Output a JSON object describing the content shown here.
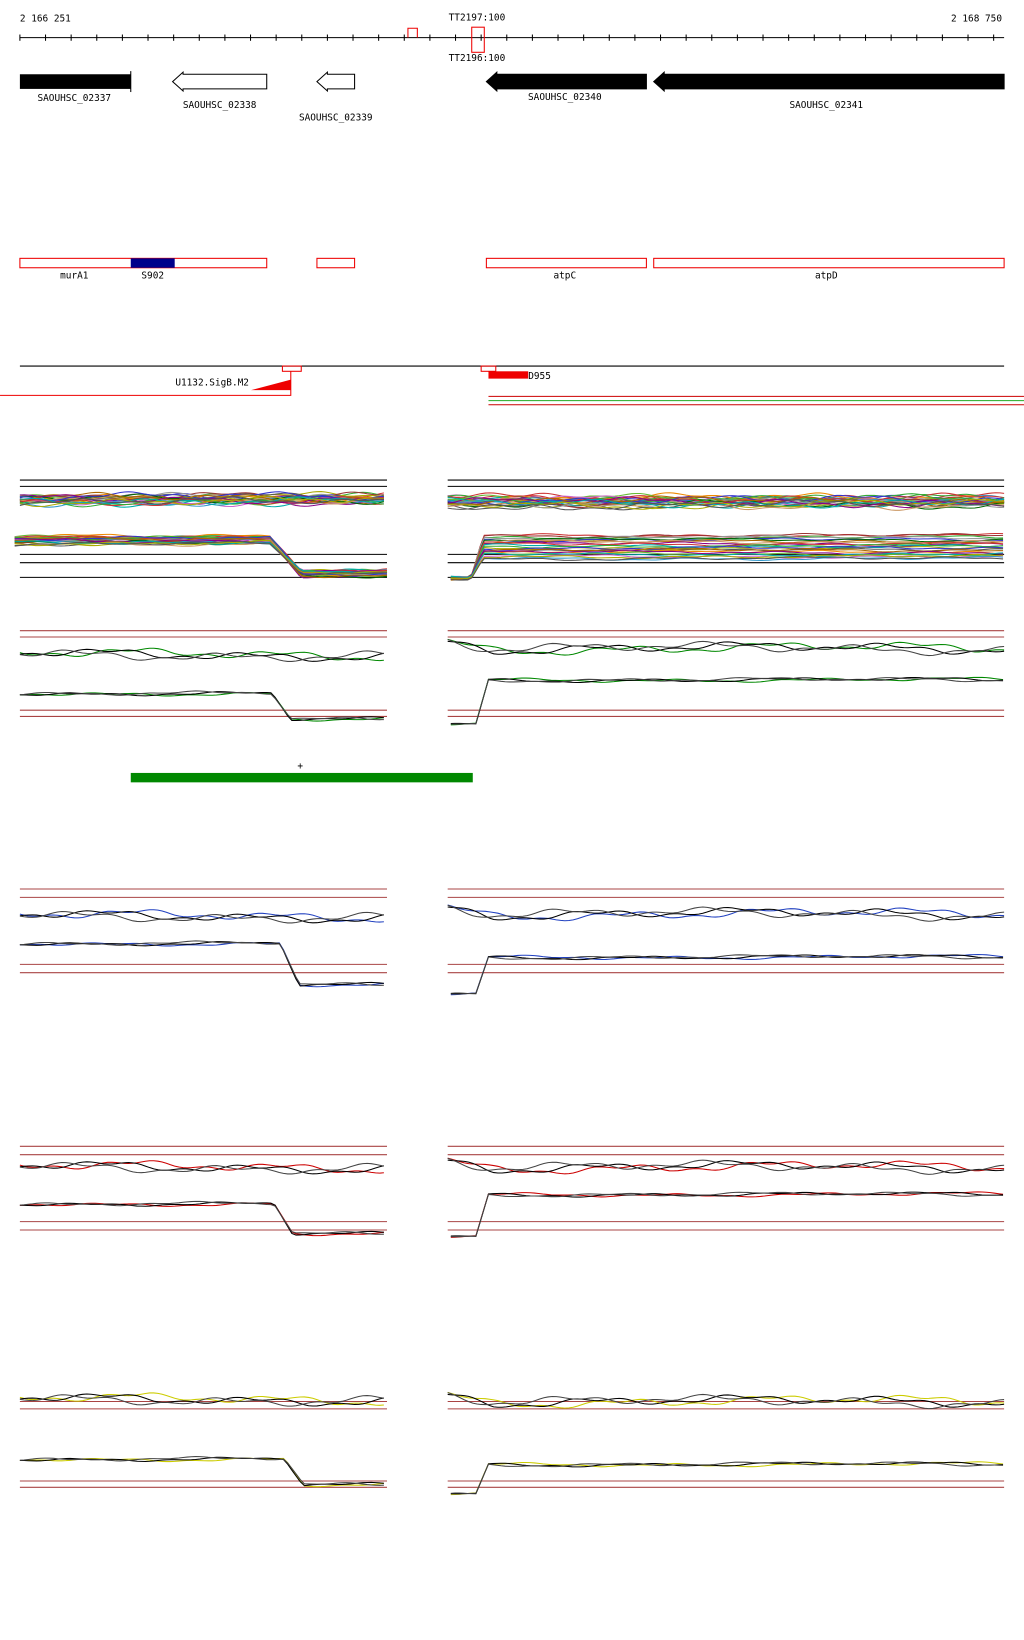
{
  "ruler": {
    "start": "2 166 251",
    "end": "2 168 750"
  },
  "terminators": [
    "TT2197:100",
    "TT2196:100"
  ],
  "genes": [
    "SAOUHSC_02337",
    "SAOUHSC_02338",
    "SAOUHSC_02339",
    "SAOUHSC_02340",
    "SAOUHSC_02341"
  ],
  "regions": [
    "murA1",
    "S902",
    "atpC",
    "atpD"
  ],
  "promoter": "U1132.SigB.M2",
  "transcript": "D955",
  "cluster_mark": "+"
}
